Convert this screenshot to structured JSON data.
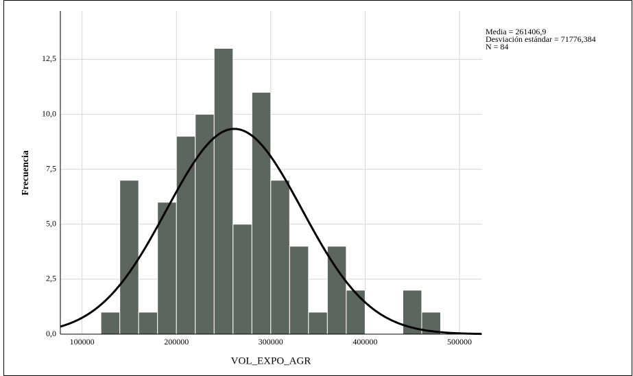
{
  "chart_data": {
    "type": "histogram",
    "x_label": "VOL_EXPO_AGR",
    "y_label": "Frecuencia",
    "bins": [
      120000,
      140000,
      160000,
      180000,
      200000,
      220000,
      240000,
      260000,
      280000,
      300000,
      320000,
      340000,
      360000,
      380000,
      400000,
      420000,
      440000,
      460000,
      480000
    ],
    "values": [
      1,
      7,
      1,
      6,
      9,
      10,
      13,
      5,
      11,
      7,
      4,
      1,
      4,
      2,
      0,
      0,
      2,
      1
    ],
    "color": "#5d6560",
    "xlim": [
      77000,
      524000
    ],
    "xticks": [
      100000,
      200000,
      300000,
      400000,
      500000
    ],
    "ylim": [
      0,
      14.7
    ],
    "yticks": [
      {
        "value": 0,
        "label": "0,0"
      },
      {
        "value": 2.5,
        "label": "2,5"
      },
      {
        "value": 5,
        "label": "5,0"
      },
      {
        "value": 7.5,
        "label": "7,5"
      },
      {
        "value": 10,
        "label": "10,0"
      },
      {
        "value": 12.5,
        "label": "12,5"
      }
    ],
    "grid": true,
    "normal_curve": {
      "color": "#000000",
      "mean": {
        "value": 261406.9,
        "label": "Media = 261406,9"
      },
      "sd": {
        "value": 71776.384,
        "label": "Desviación estándar = 71776,384"
      },
      "n": {
        "value": 84,
        "label": "N = 84"
      }
    }
  }
}
